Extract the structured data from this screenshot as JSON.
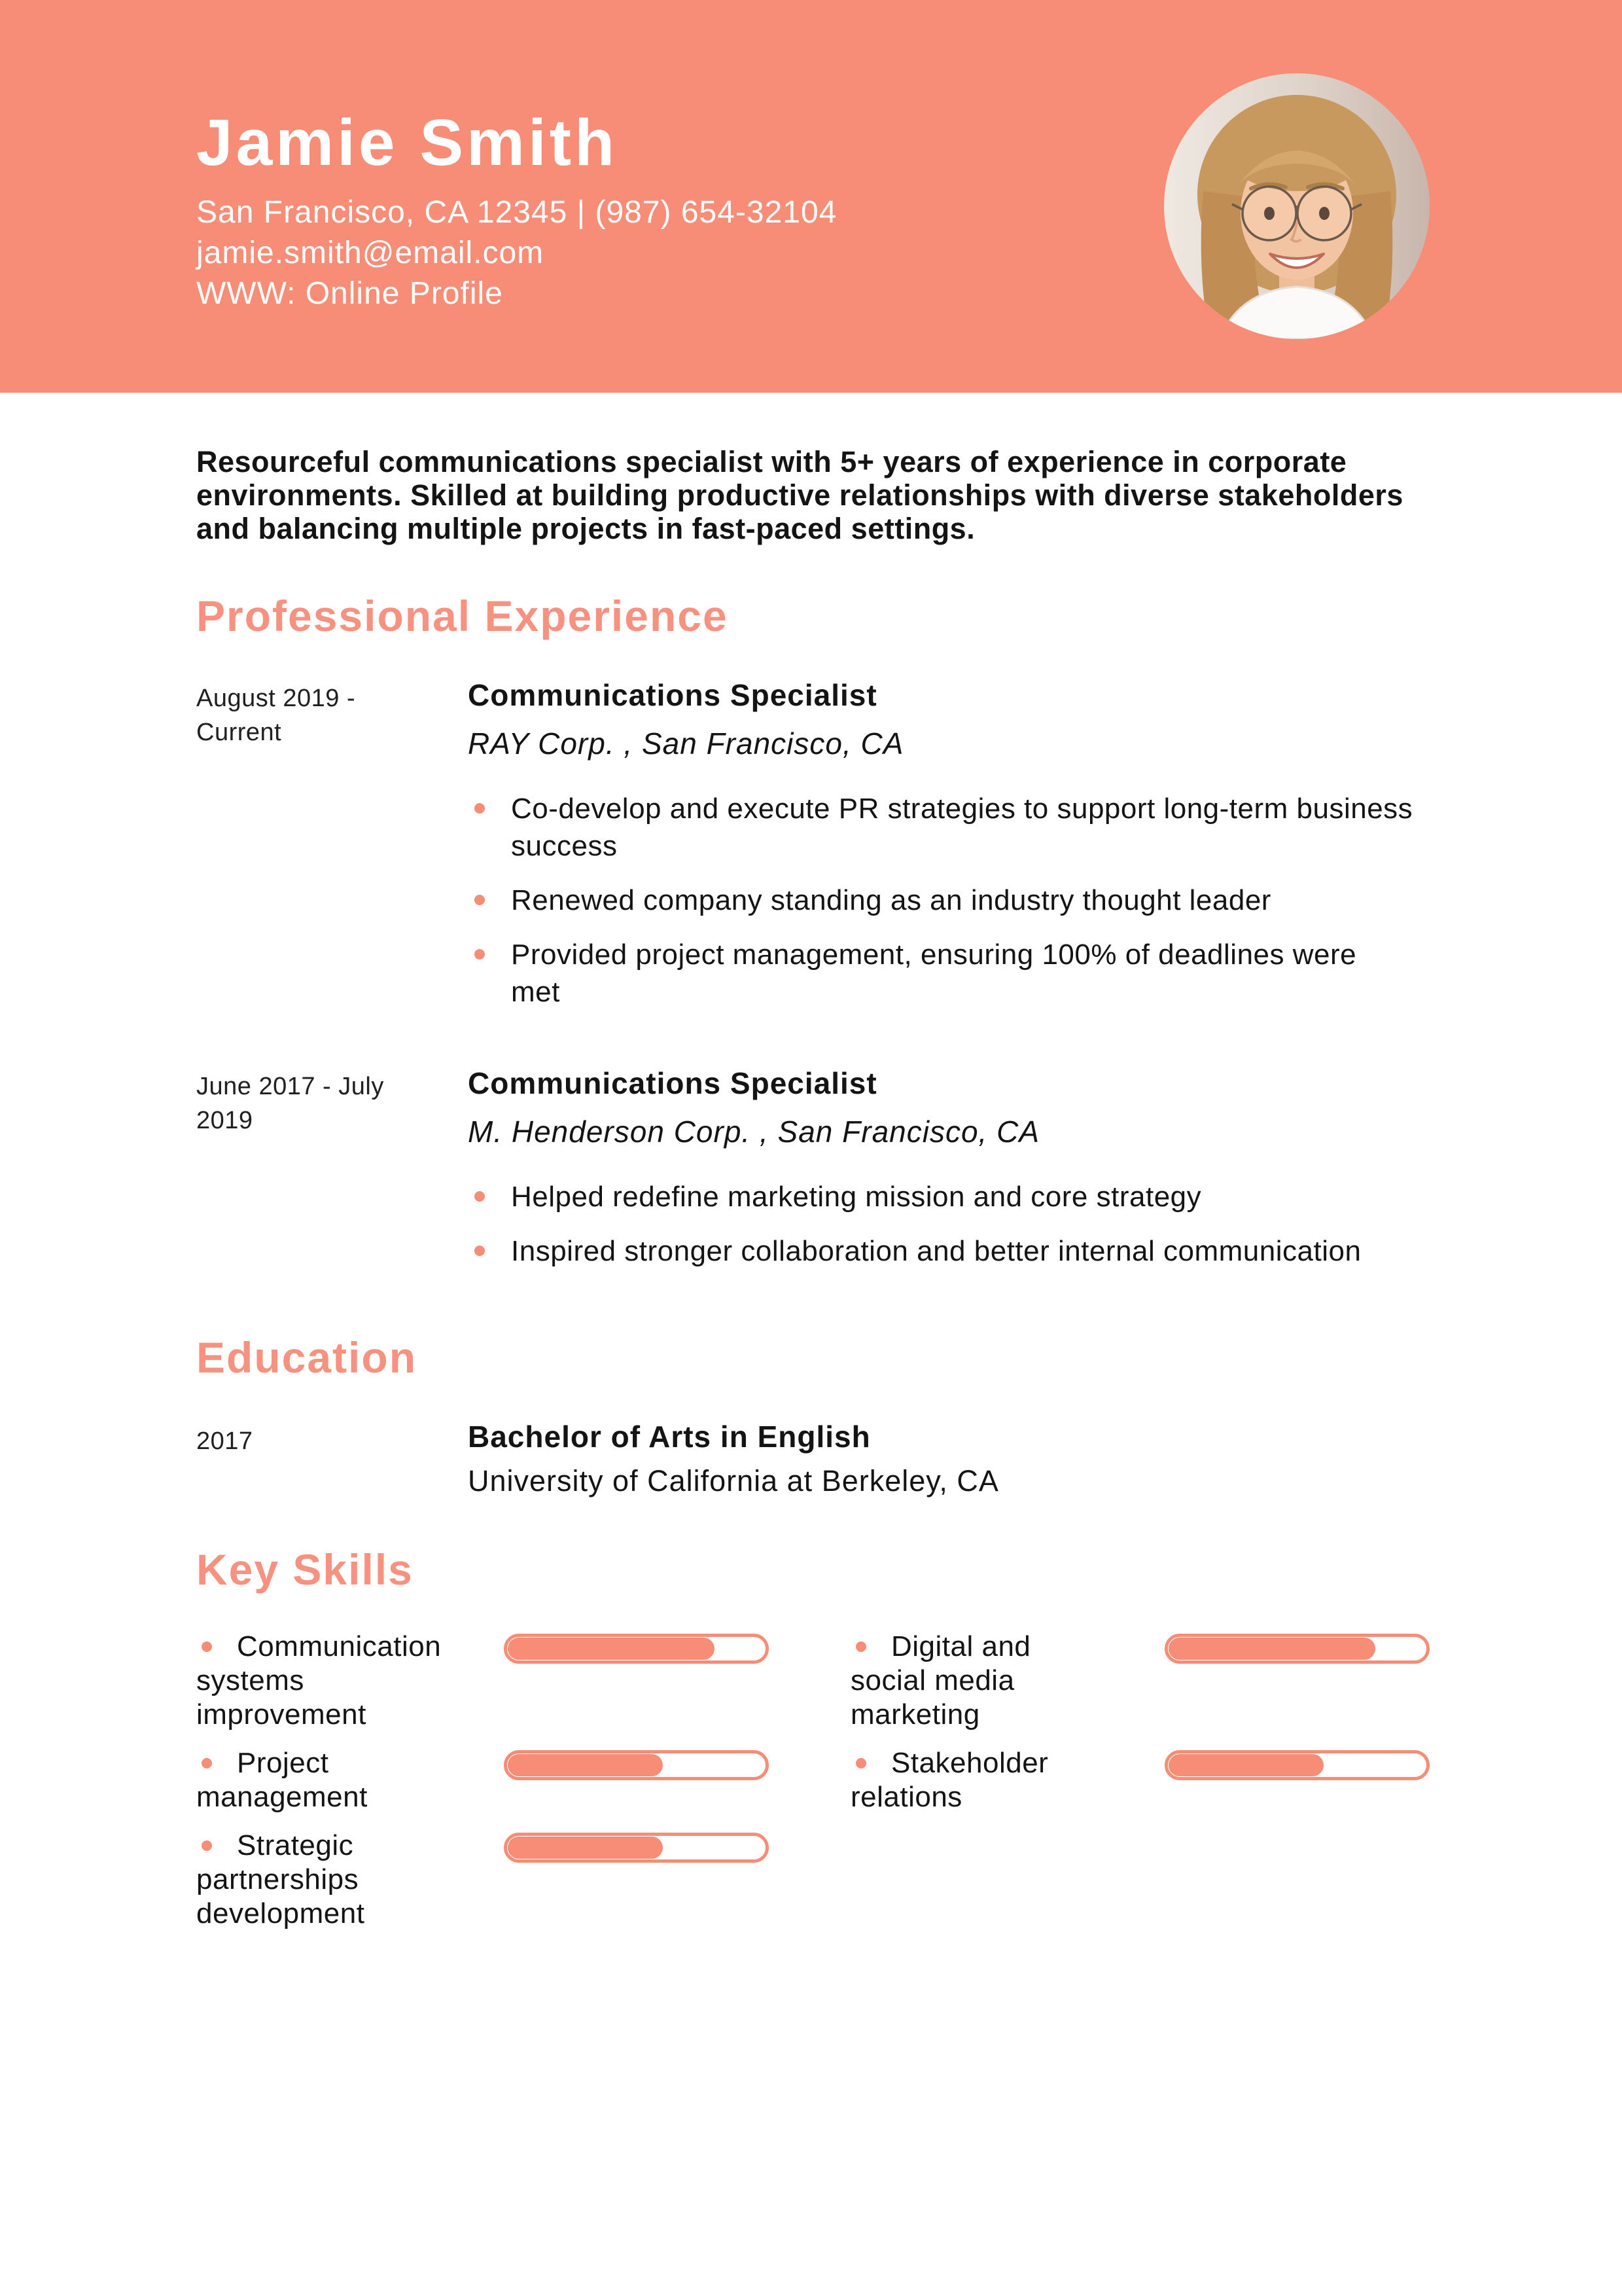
{
  "colors": {
    "accent": "#f78d77",
    "heading": "#f79180",
    "header_background": "#f78d77",
    "text": "#141414",
    "header_text": "#ffffff"
  },
  "header": {
    "name": "Jamie Smith",
    "contact_line": "San Francisco, CA 12345 | (987) 654-32104",
    "email": "jamie.smith@email.com",
    "website_line": "WWW: Online Profile"
  },
  "summary": "Resourceful communications specialist with 5+ years of experience in corporate environments. Skilled at building productive relationships with diverse stakeholders and balancing multiple projects in fast-paced settings.",
  "experience": {
    "title": "Professional Experience",
    "jobs": [
      {
        "dates": "August 2019 - Current",
        "title": "Communications Specialist",
        "company": "RAY Corp. , San Francisco, CA",
        "bullets": [
          "Co-develop and execute PR strategies to support long-term business success",
          "Renewed company standing as an industry thought leader",
          "Provided project management, ensuring 100% of deadlines were met"
        ]
      },
      {
        "dates": "June 2017 - July 2019",
        "title": "Communications Specialist",
        "company": "M. Henderson Corp. , San Francisco, CA",
        "bullets": [
          "Helped redefine marketing mission and core strategy",
          "Inspired stronger collaboration and better internal communication"
        ]
      }
    ]
  },
  "education": {
    "title": "Education",
    "year": "2017",
    "degree": "Bachelor of Arts in English",
    "school": "University of California at Berkeley, CA"
  },
  "skills": {
    "title": "Key Skills",
    "items": [
      {
        "label": "Communication systems improvement",
        "level": 80
      },
      {
        "label": "Project management",
        "level": 60
      },
      {
        "label": "Strategic partnerships development",
        "level": 60
      },
      {
        "label": "Digital and social media marketing",
        "level": 80
      },
      {
        "label": "Stakeholder relations",
        "level": 60
      }
    ]
  }
}
